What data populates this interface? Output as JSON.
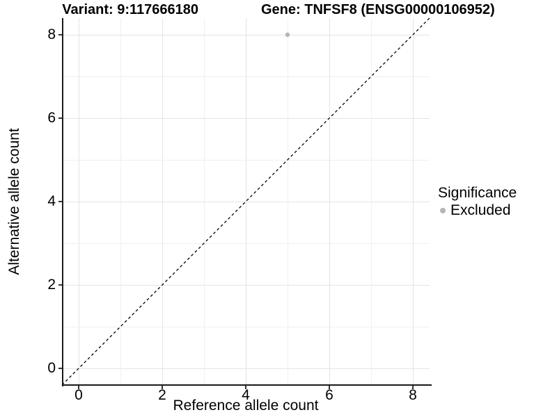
{
  "title": {
    "variant": "Variant: 9:117666180",
    "gene": "Gene: TNFSF8 (ENSG00000106952)"
  },
  "axes": {
    "x": {
      "label": "Reference allele count",
      "ticks": [
        0,
        2,
        4,
        6,
        8
      ]
    },
    "y": {
      "label": "Alternative allele count",
      "ticks": [
        0,
        2,
        4,
        6,
        8
      ]
    }
  },
  "legend": {
    "title": "Significance",
    "items": [
      {
        "label": "Excluded",
        "color": "#b5b5b5"
      }
    ]
  },
  "colors": {
    "point": "#b5b5b5",
    "grid_major": "#e4e4e4",
    "grid_minor": "#f0f0f0",
    "axis_line": "#1a1a1a",
    "identity_line": "#000000",
    "background": "#ffffff"
  },
  "chart_data": {
    "type": "scatter",
    "title": "Variant: 9:117666180    Gene: TNFSF8 (ENSG00000106952)",
    "xlabel": "Reference allele count",
    "ylabel": "Alternative allele count",
    "xlim": [
      -0.4,
      8.4
    ],
    "ylim": [
      -0.4,
      8.4
    ],
    "x_ticks": [
      0,
      2,
      4,
      6,
      8
    ],
    "y_ticks": [
      0,
      2,
      4,
      6,
      8
    ],
    "grid": true,
    "grid_values": [
      0,
      1,
      2,
      3,
      4,
      5,
      6,
      7,
      8
    ],
    "series": [
      {
        "name": "Excluded",
        "color": "#b5b5b5",
        "points": [
          [
            5,
            8
          ]
        ],
        "point_radius": 3.2
      }
    ],
    "reference_line": {
      "type": "identity",
      "style": "dashed",
      "from": [
        -0.4,
        -0.4
      ],
      "to": [
        8.4,
        8.4
      ],
      "color": "#000000"
    },
    "legend_position": "right",
    "legend_title": "Significance"
  }
}
